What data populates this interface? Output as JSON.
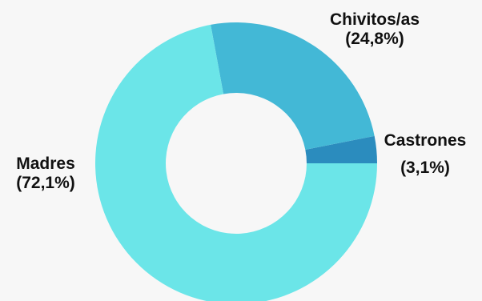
{
  "chart_data": {
    "type": "pie",
    "donut": true,
    "title": "",
    "start_angle_deg": 0,
    "direction": "counterclockwise",
    "slices": [
      {
        "name": "Castrones",
        "value": 3.1,
        "percent_label": "(3,1%)",
        "color": "#2b8cbe"
      },
      {
        "name": "Chivitos/as",
        "value": 24.8,
        "percent_label": "(24,8%)",
        "color": "#43b8d6"
      },
      {
        "name": "Madres",
        "value": 72.1,
        "percent_label": "(72,1%)",
        "color": "#6be5e8"
      }
    ]
  },
  "background_color": "#f7f7f7"
}
